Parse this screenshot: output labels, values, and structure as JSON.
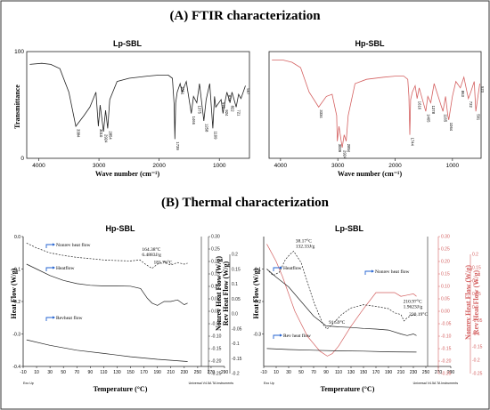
{
  "sections": {
    "ftir_title": "(A) FTIR characterization",
    "thermal_title": "(B) Thermal characterization"
  },
  "colors": {
    "black": "#222222",
    "red": "#d46060",
    "blue": "#2060d0"
  },
  "chart_data": [
    {
      "id": "ftir_lp",
      "type": "line",
      "title": "Lp-SBL",
      "xlabel": "Wave number (cm⁻¹)",
      "ylabel": "Transmittance",
      "xlim": [
        4200,
        500
      ],
      "ylim": [
        0,
        100
      ],
      "x_reversed": true,
      "xticks": [
        4000,
        3000,
        2000,
        1000
      ],
      "ytick_labels": [
        "100",
        "0"
      ],
      "series": [
        {
          "color": "#222222",
          "x": [
            4150,
            3950,
            3800,
            3650,
            3500,
            3384,
            3250,
            3150,
            3050,
            3010,
            2980,
            2924,
            2890,
            2854,
            2820,
            2700,
            2500,
            2200,
            2000,
            1850,
            1780,
            1750,
            1739,
            1725,
            1700,
            1651,
            1620,
            1550,
            1466,
            1430,
            1375,
            1330,
            1258,
            1220,
            1160,
            1109,
            1080,
            1060,
            970,
            940,
            924,
            874,
            822,
            790,
            721,
            680,
            640,
            567
          ],
          "y": [
            88,
            89,
            88,
            84,
            62,
            30,
            40,
            48,
            62,
            30,
            50,
            25,
            45,
            28,
            55,
            72,
            75,
            77,
            78,
            78,
            75,
            50,
            18,
            52,
            62,
            70,
            62,
            72,
            42,
            58,
            52,
            70,
            35,
            55,
            70,
            28,
            58,
            48,
            55,
            42,
            48,
            62,
            52,
            62,
            48,
            60,
            56,
            68
          ]
        }
      ],
      "peak_labels": [
        "3384",
        "3010",
        "2924",
        "2854",
        "1739",
        "1651",
        "1466",
        "1375",
        "1258",
        "1109",
        "970",
        "924",
        "874",
        "822",
        "721",
        "567"
      ]
    },
    {
      "id": "ftir_hp",
      "type": "line",
      "title": "Hp-SBL",
      "xlabel": "Wave number (cm⁻¹)",
      "ylabel": "",
      "xlim": [
        4200,
        500
      ],
      "ylim": [
        0,
        100
      ],
      "x_reversed": true,
      "xticks": [
        4000,
        3000,
        2000,
        1000
      ],
      "ytick_labels": [],
      "series": [
        {
          "color": "#d46060",
          "x": [
            4150,
            3950,
            3800,
            3650,
            3500,
            3334,
            3200,
            3100,
            3020,
            3009,
            2980,
            2924,
            2890,
            2854,
            2820,
            2700,
            2500,
            2200,
            2000,
            1850,
            1780,
            1760,
            1744,
            1730,
            1700,
            1650,
            1616,
            1580,
            1465,
            1430,
            1378,
            1320,
            1165,
            1120,
            1080,
            1064,
            1000,
            940,
            863,
            800,
            722,
            680,
            620,
            591,
            523
          ],
          "y": [
            92,
            92,
            90,
            85,
            62,
            48,
            58,
            60,
            40,
            16,
            30,
            10,
            22,
            16,
            40,
            70,
            74,
            76,
            77,
            77,
            74,
            58,
            22,
            55,
            62,
            68,
            56,
            66,
            44,
            58,
            52,
            70,
            44,
            58,
            40,
            36,
            58,
            72,
            66,
            76,
            56,
            62,
            72,
            44,
            70
          ]
        }
      ],
      "peak_labels": [
        "3334",
        "3009",
        "2924",
        "2854",
        "1744",
        "1616",
        "1465",
        "1378",
        "1165",
        "1064",
        "863",
        "722",
        "591",
        "523"
      ]
    },
    {
      "id": "dsc_hp",
      "type": "line",
      "title": "Hp-SBL",
      "xlabel": "Temperature (°C)",
      "ylabel": "Heat Flow (W/g)",
      "y2label": "Nonrev Heat Flow (W/g)",
      "y3label": "Rev Heat Flow (W/g)",
      "xlim": [
        -10,
        290
      ],
      "ylim": [
        -0.4,
        0.0
      ],
      "y2lim": [
        -0.25,
        0.3
      ],
      "y3lim": [
        -0.2,
        0.2
      ],
      "xticks": [
        -10,
        10,
        30,
        50,
        70,
        90,
        110,
        130,
        150,
        170,
        190,
        210,
        230,
        250,
        270,
        290
      ],
      "yticks": [
        0.0,
        -0.1,
        -0.2,
        -0.3,
        -0.4
      ],
      "ytick_labels": [
        "0.0",
        "-0.1",
        "-0.2",
        "-0.3",
        "-0.4"
      ],
      "y2ticks": [
        0.3,
        0.25,
        0.2,
        0.15,
        0.1,
        0.05,
        0.0,
        -0.05,
        -0.1,
        -0.15,
        -0.2,
        -0.25
      ],
      "y2tick_labels": [
        "0.30",
        "0.25",
        "0.20",
        "0.15",
        "0.10",
        "0.05",
        "0.00",
        "-0.05",
        "-0.10",
        "-0.15",
        "-0.20",
        "-0.25"
      ],
      "y3ticks": [
        0.2,
        0.15,
        0.1,
        0.05,
        0.0,
        -0.05,
        -0.1,
        -0.15,
        -0.2
      ],
      "y3tick_labels": [
        "0.2",
        "0.15",
        "0.1",
        "0.05",
        "0.0",
        "-0.05",
        "-0.1",
        "-0.15",
        "-0.2"
      ],
      "series": [
        {
          "name": "Nonrev heat flow",
          "axis": "y",
          "style": "dashed",
          "color": "#222222",
          "x": [
            -5,
            10,
            30,
            50,
            70,
            90,
            110,
            130,
            150,
            164,
            172,
            182,
            190,
            200,
            210,
            220,
            230,
            235
          ],
          "y": [
            -0.02,
            -0.035,
            -0.05,
            -0.058,
            -0.064,
            -0.068,
            -0.072,
            -0.074,
            -0.075,
            -0.072,
            -0.085,
            -0.098,
            -0.085,
            -0.078,
            -0.088,
            -0.08,
            -0.085,
            -0.082
          ]
        },
        {
          "name": "Heatflow",
          "axis": "y",
          "style": "solid",
          "color": "#222222",
          "x": [
            -5,
            10,
            30,
            50,
            70,
            90,
            110,
            130,
            150,
            165,
            175,
            182,
            190,
            200,
            210,
            220,
            230,
            235
          ],
          "y": [
            -0.085,
            -0.1,
            -0.12,
            -0.135,
            -0.145,
            -0.15,
            -0.152,
            -0.152,
            -0.153,
            -0.16,
            -0.19,
            -0.205,
            -0.212,
            -0.2,
            -0.2,
            -0.195,
            -0.21,
            -0.205
          ]
        },
        {
          "name": "Revheat flow",
          "axis": "y",
          "style": "solid",
          "color": "#222222",
          "x": [
            -5,
            30,
            70,
            110,
            150,
            190,
            235
          ],
          "y": [
            -0.318,
            -0.335,
            -0.35,
            -0.36,
            -0.37,
            -0.378,
            -0.385
          ]
        }
      ],
      "annotations": [
        {
          "line1": "164.38°C",
          "line2": "6.4883J/g",
          "x": 164.38,
          "y": -0.06
        },
        {
          "line1": "181.76°C",
          "line2": "",
          "x": 181.76,
          "y": -0.1
        }
      ],
      "footer_left": "Exo Up",
      "footer_right": "Universal V4.5A TA Instruments"
    },
    {
      "id": "dsc_lp",
      "type": "line",
      "title": "Lp-SBL",
      "xlabel": "Temperature (°C)",
      "ylabel": "Heat Flow (W/g)",
      "y2label": "Nonrev Heat Flow (W/g)",
      "y3label": "Rev Heat Flow (W/g)",
      "xlim": [
        -10,
        290
      ],
      "ylim": [
        -0.4,
        0.0
      ],
      "y2lim": [
        -0.25,
        0.3
      ],
      "y3lim": [
        -0.25,
        0.2
      ],
      "xticks": [
        -10,
        10,
        30,
        50,
        70,
        90,
        110,
        130,
        150,
        170,
        190,
        210,
        230,
        250,
        270,
        290
      ],
      "yticks": [
        -0.1,
        -0.2,
        -0.3
      ],
      "ytick_labels": [
        "-0.1",
        "-0.2",
        "-0.3"
      ],
      "y2ticks": [
        0.3,
        0.25,
        0.2,
        0.15,
        0.1,
        0.05,
        0.0,
        -0.05,
        -0.1,
        -0.15,
        -0.2,
        -0.25
      ],
      "y2tick_labels": [
        "0.30",
        "0.25",
        "0.20",
        "0.15",
        "0.10",
        "0.05",
        "0.00",
        "-0.05",
        "-0.10",
        "-0.15",
        "-0.20",
        "-0.25"
      ],
      "y3ticks": [
        0.2,
        0.15,
        0.1,
        0.05,
        0.0,
        -0.05,
        -0.1,
        -0.15,
        -0.2,
        -0.25
      ],
      "y3tick_labels": [
        "0.2",
        "0.15",
        "0.1",
        "0.05",
        "0.0",
        "-0.05",
        "-0.1",
        "-0.15",
        "-0.2",
        "-0.25"
      ],
      "series": [
        {
          "name": "Nonrev heat flow",
          "axis": "y2",
          "style": "solid",
          "color": "#d46060",
          "x": [
            -5,
            10,
            20,
            30,
            40,
            60,
            80,
            92,
            100,
            110,
            130,
            150,
            170,
            190,
            200,
            210,
            220,
            230,
            235
          ],
          "y": [
            0.27,
            0.2,
            0.14,
            0.07,
            0.0,
            -0.1,
            -0.16,
            -0.18,
            -0.17,
            -0.14,
            -0.06,
            0.01,
            0.075,
            0.075,
            0.075,
            0.06,
            0.065,
            0.07,
            0.06
          ]
        },
        {
          "name": "Heatflow",
          "axis": "y",
          "style": "dashed",
          "color": "#222222",
          "x": [
            -5,
            5,
            15,
            25,
            32,
            38,
            50,
            70,
            85,
            91.59,
            100,
            115,
            130,
            150,
            170,
            190,
            200,
            210,
            215,
            220,
            230,
            235
          ],
          "y": [
            -0.1,
            -0.12,
            -0.11,
            -0.07,
            -0.055,
            -0.045,
            -0.08,
            -0.2,
            -0.27,
            -0.285,
            -0.27,
            -0.24,
            -0.22,
            -0.21,
            -0.215,
            -0.222,
            -0.235,
            -0.24,
            -0.26,
            -0.25,
            -0.24,
            -0.245
          ]
        },
        {
          "name": "Heatflow",
          "axis": "y",
          "style": "solid",
          "color": "#222222",
          "x": [
            -5,
            10,
            30,
            50,
            70,
            90,
            110,
            130,
            150,
            170,
            190,
            210,
            220,
            230,
            235
          ],
          "y": [
            -0.1,
            -0.125,
            -0.155,
            -0.2,
            -0.245,
            -0.275,
            -0.278,
            -0.28,
            -0.283,
            -0.285,
            -0.288,
            -0.3,
            -0.305,
            -0.3,
            -0.305
          ]
        },
        {
          "name": "Rev heat flow",
          "axis": "y",
          "style": "solid",
          "color": "#222222",
          "x": [
            -5,
            30,
            70,
            110,
            150,
            190,
            235
          ],
          "y": [
            -0.345,
            -0.348,
            -0.35,
            -0.352,
            -0.353,
            -0.355,
            -0.356
          ]
        }
      ],
      "annotations": [
        {
          "line1": "38.17°C",
          "line2": "132.33J/g",
          "x": 38.17,
          "y": -0.045
        },
        {
          "line1": "91.59°C",
          "line2": "",
          "x": 91.59,
          "y": -0.285
        },
        {
          "line1": "210.97°C",
          "line2": "1.9623J/g",
          "x": 210.97,
          "y": -0.22
        },
        {
          "line1": "220.19°C",
          "line2": "",
          "x": 220.19,
          "y": -0.26
        }
      ],
      "footer_left": "Exo Up",
      "footer_right": "Universal V4.5A TA Instruments"
    }
  ]
}
